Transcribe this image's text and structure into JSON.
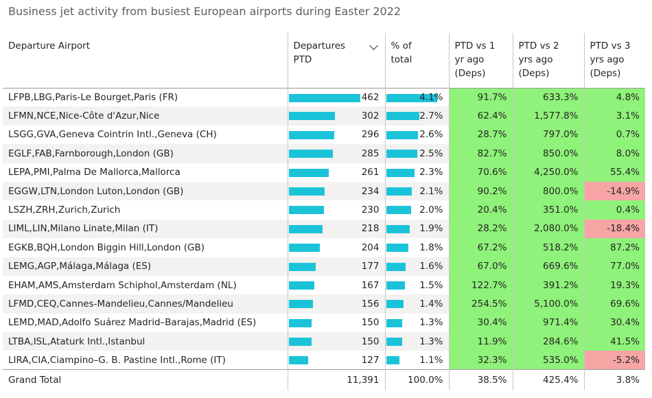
{
  "title": "Business jet activity from busiest European airports during Easter 2022",
  "colors": {
    "bar": "#1bc3d9",
    "positive": "#8ff27a",
    "negative": "#f6a4a4"
  },
  "headers": {
    "airport": "Departure Airport",
    "departures": "Departures PTD",
    "pct": "% of total",
    "vs1": "PTD vs 1 yr ago (Deps)",
    "vs2": "PTD vs 2 yrs ago (Deps)",
    "vs3": "PTD vs 3 yrs ago (Deps)"
  },
  "sort_icon": "chevron-down-icon",
  "rows": [
    {
      "airport": "LFPB,LBG,Paris-Le Bourget,Paris (FR)",
      "departures": "462",
      "pct": "4.1%",
      "vs1": "91.7%",
      "vs2": "633.3%",
      "vs3": "4.8%"
    },
    {
      "airport": "LFMN,NCE,Nice-Côte d'Azur,Nice",
      "departures": "302",
      "pct": "2.7%",
      "vs1": "62.4%",
      "vs2": "1,577.8%",
      "vs3": "3.1%"
    },
    {
      "airport": "LSGG,GVA,Geneva Cointrin Intl.,Geneva (CH)",
      "departures": "296",
      "pct": "2.6%",
      "vs1": "28.7%",
      "vs2": "797.0%",
      "vs3": "0.7%"
    },
    {
      "airport": "EGLF,FAB,Farnborough,London (GB)",
      "departures": "285",
      "pct": "2.5%",
      "vs1": "82.7%",
      "vs2": "850.0%",
      "vs3": "8.0%"
    },
    {
      "airport": "LEPA,PMI,Palma De Mallorca,Mallorca",
      "departures": "261",
      "pct": "2.3%",
      "vs1": "70.6%",
      "vs2": "4,250.0%",
      "vs3": "55.4%"
    },
    {
      "airport": "EGGW,LTN,London Luton,London (GB)",
      "departures": "234",
      "pct": "2.1%",
      "vs1": "90.2%",
      "vs2": "800.0%",
      "vs3": "-14.9%"
    },
    {
      "airport": "LSZH,ZRH,Zurich,Zurich",
      "departures": "230",
      "pct": "2.0%",
      "vs1": "20.4%",
      "vs2": "351.0%",
      "vs3": "0.4%"
    },
    {
      "airport": "LIML,LIN,Milano Linate,Milan (IT)",
      "departures": "218",
      "pct": "1.9%",
      "vs1": "28.2%",
      "vs2": "2,080.0%",
      "vs3": "-18.4%"
    },
    {
      "airport": "EGKB,BQH,London Biggin Hill,London (GB)",
      "departures": "204",
      "pct": "1.8%",
      "vs1": "67.2%",
      "vs2": "518.2%",
      "vs3": "87.2%"
    },
    {
      "airport": "LEMG,AGP,Málaga,Málaga (ES)",
      "departures": "177",
      "pct": "1.6%",
      "vs1": "67.0%",
      "vs2": "669.6%",
      "vs3": "77.0%"
    },
    {
      "airport": "EHAM,AMS,Amsterdam Schiphol,Amsterdam (NL)",
      "departures": "167",
      "pct": "1.5%",
      "vs1": "122.7%",
      "vs2": "391.2%",
      "vs3": "19.3%"
    },
    {
      "airport": "LFMD,CEQ,Cannes-Mandelieu,Cannes/Mandelieu",
      "departures": "156",
      "pct": "1.4%",
      "vs1": "254.5%",
      "vs2": "5,100.0%",
      "vs3": "69.6%"
    },
    {
      "airport": "LEMD,MAD,Adolfo Suárez Madrid–Barajas,Madrid (ES)",
      "departures": "150",
      "pct": "1.3%",
      "vs1": "30.4%",
      "vs2": "971.4%",
      "vs3": "30.4%"
    },
    {
      "airport": "LTBA,ISL,Ataturk Intl.,Istanbul",
      "departures": "150",
      "pct": "1.3%",
      "vs1": "11.9%",
      "vs2": "284.6%",
      "vs3": "41.5%"
    },
    {
      "airport": "LIRA,CIA,Ciampino–G. B. Pastine Intl.,Rome (IT)",
      "departures": "127",
      "pct": "1.1%",
      "vs1": "32.3%",
      "vs2": "535.0%",
      "vs3": "-5.2%"
    }
  ],
  "total": {
    "label": "Grand Total",
    "departures": "11,391",
    "pct": "100.0%",
    "vs1": "38.5%",
    "vs2": "425.4%",
    "vs3": "3.8%"
  }
}
